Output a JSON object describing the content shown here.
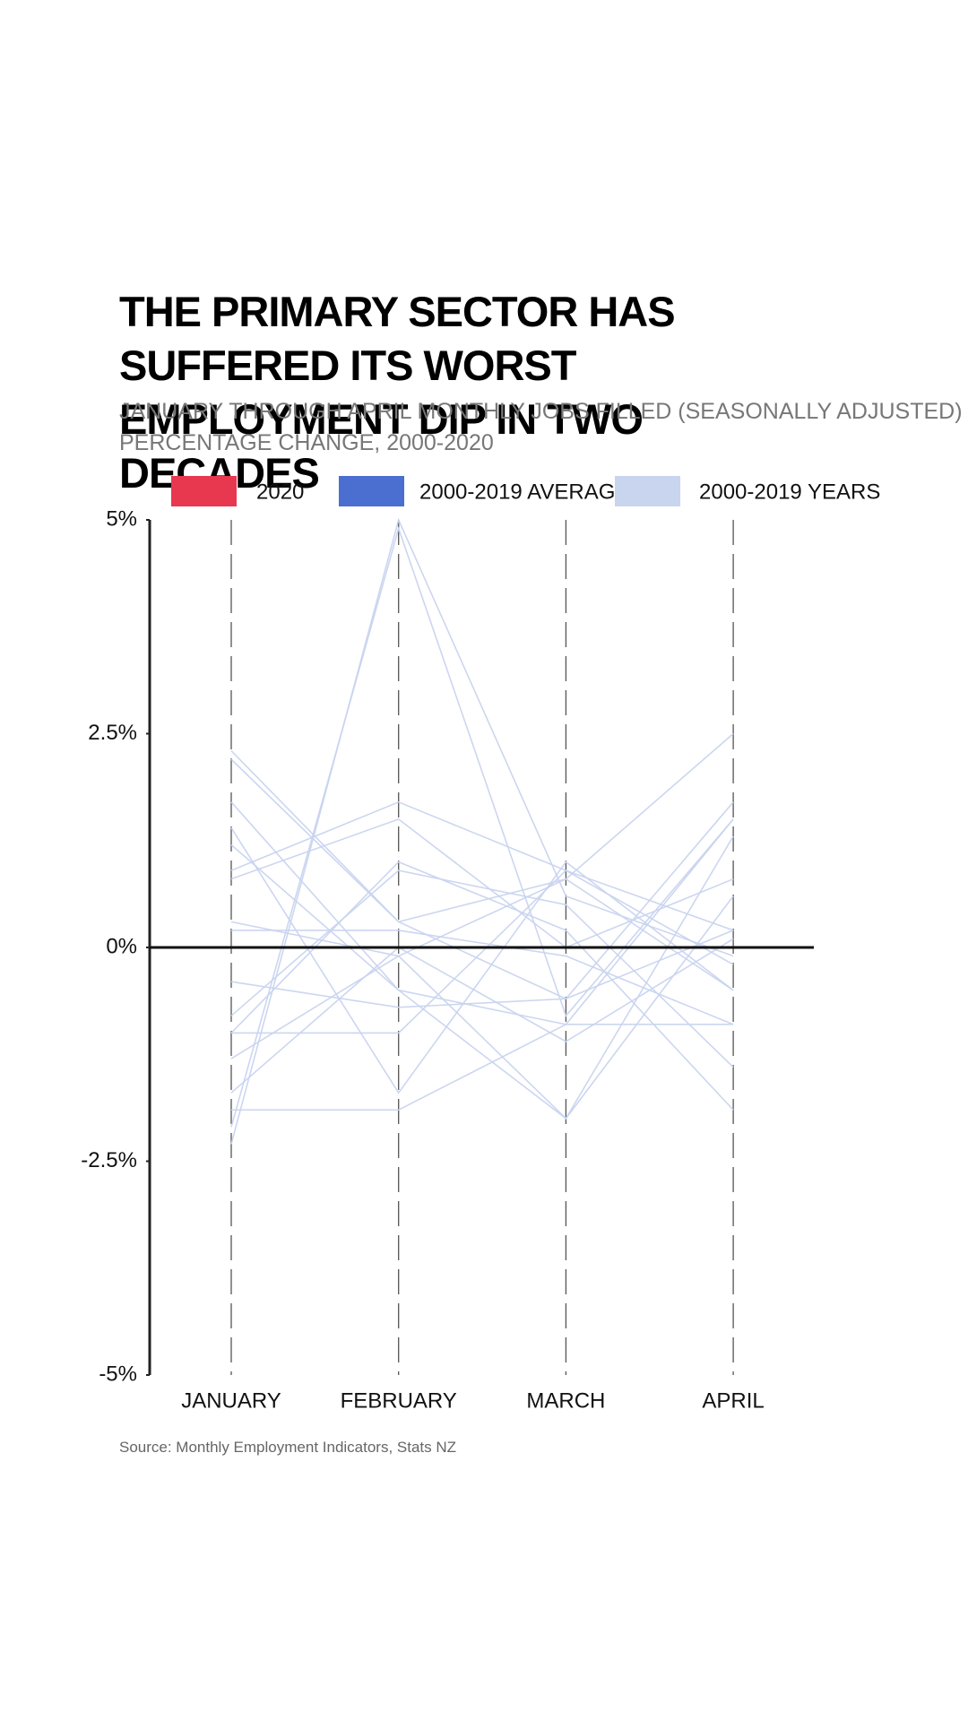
{
  "chart_data": {
    "type": "line",
    "title": "THE PRIMARY SECTOR HAS SUFFERED ITS WORST EMPLOYMENT DIP IN TWO DECADES",
    "subtitle": [
      "JANUARY THROUGH APRIL MONTHLY JOBS FILLED (SEASONALLY ADJUSTED)",
      "PERCENTAGE CHANGE, 2000-2020"
    ],
    "source": "Source: Monthly Employment Indicators, Stats NZ",
    "categories": [
      "JANUARY",
      "FEBRUARY",
      "MARCH",
      "APRIL"
    ],
    "ylim": [
      -5,
      5
    ],
    "yticks": [
      {
        "value": -5,
        "label": "-5%"
      },
      {
        "value": -2.5,
        "label": "-2.5%"
      },
      {
        "value": 0,
        "label": "0%"
      },
      {
        "value": 2.5,
        "label": "2.5%"
      },
      {
        "value": 5,
        "label": "5%"
      }
    ],
    "series": [
      {
        "name": "2020",
        "color": "#e8384f"
      },
      {
        "name": "2000-2019 AVERAGE",
        "color": "#4a6fd0"
      },
      {
        "name": "2000-2019 YEARS",
        "color": "#c9d4ef",
        "lines": [
          [
            -2.3,
            5.0,
            0.6,
            -0.1
          ],
          [
            -2.1,
            4.9,
            -0.8,
            1.5
          ],
          [
            2.3,
            0.3,
            -0.6,
            0.2
          ],
          [
            1.7,
            -0.5,
            -2.0,
            1.3
          ],
          [
            1.4,
            -1.7,
            1.0,
            -0.5
          ],
          [
            0.9,
            1.7,
            0.9,
            -0.2
          ],
          [
            0.8,
            1.5,
            0.0,
            0.8
          ],
          [
            0.3,
            -0.1,
            0.8,
            2.5
          ],
          [
            0.2,
            0.2,
            -0.1,
            -0.9
          ],
          [
            -0.4,
            -0.7,
            -0.6,
            1.7
          ],
          [
            -0.8,
            0.9,
            0.5,
            -1.4
          ],
          [
            -1.0,
            1.0,
            0.2,
            -1.9
          ],
          [
            -1.3,
            -0.1,
            -2.0,
            0.6
          ],
          [
            -1.7,
            0.0,
            -1.1,
            0.1
          ],
          [
            -1.9,
            -1.9,
            -0.9,
            1.5
          ],
          [
            2.2,
            0.3,
            0.8,
            -0.5
          ],
          [
            1.2,
            -0.5,
            -0.9,
            -0.9
          ],
          [
            -1.0,
            -1.0,
            0.9,
            0.2
          ]
        ]
      }
    ]
  }
}
